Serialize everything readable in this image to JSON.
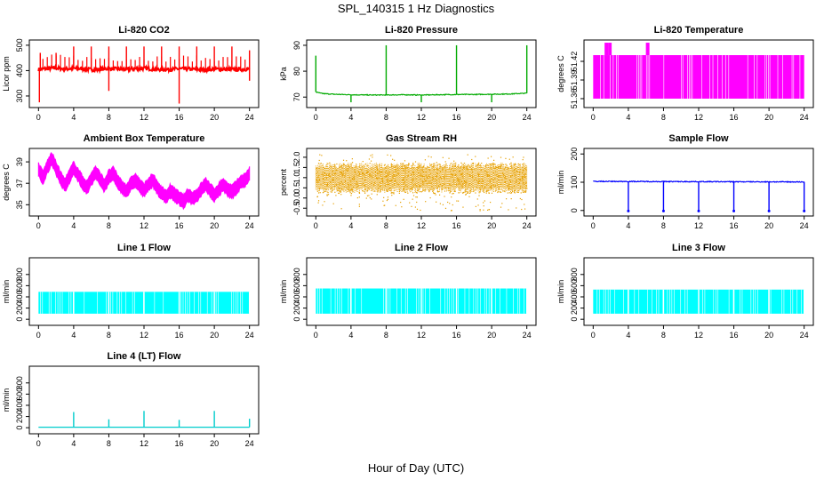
{
  "figure": {
    "title": "SPL_140315  1 Hz Diagnostics",
    "xlabel": "Hour of Day (UTC)"
  },
  "chart_data": [
    {
      "id": "co2",
      "type": "line",
      "title": "Li-820 CO2",
      "ylabel": "Licor ppm",
      "color": "#ff0000",
      "xlim": [
        0,
        24
      ],
      "ylim": [
        265,
        510
      ],
      "xticks": [
        0,
        4,
        8,
        12,
        16,
        20,
        24
      ],
      "yticks": [
        300,
        400,
        500
      ],
      "series": [
        {
          "x": [
            0,
            1,
            2,
            3,
            4,
            5,
            6,
            7,
            8,
            9,
            10,
            11,
            12,
            13,
            14,
            15,
            16,
            17,
            18,
            19,
            20,
            21,
            22,
            23,
            24
          ],
          "y": [
            405,
            408,
            410,
            406,
            409,
            407,
            404,
            405,
            408,
            406,
            405,
            407,
            409,
            406,
            404,
            405,
            407,
            406,
            405,
            404,
            406,
            405,
            404,
            405,
            406
          ]
        }
      ],
      "spikes_up": [
        [
          0.2,
          470
        ],
        [
          2.0,
          470
        ],
        [
          4.0,
          495
        ],
        [
          6.0,
          495
        ],
        [
          8.0,
          495
        ],
        [
          10.0,
          495
        ],
        [
          12.0,
          495
        ],
        [
          14.0,
          495
        ],
        [
          16.0,
          495
        ],
        [
          18.0,
          495
        ],
        [
          20.0,
          495
        ],
        [
          22.0,
          495
        ],
        [
          24.0,
          480
        ]
      ],
      "spikes_down": [
        [
          0.1,
          275
        ],
        [
          8.0,
          320
        ],
        [
          16.0,
          270
        ],
        [
          24.0,
          360
        ]
      ]
    },
    {
      "id": "pressure",
      "type": "line",
      "title": "Li-820 Pressure",
      "ylabel": "kPa",
      "color": "#00aa00",
      "xlim": [
        0,
        24
      ],
      "ylim": [
        67,
        91
      ],
      "xticks": [
        0,
        4,
        8,
        12,
        16,
        20,
        24
      ],
      "yticks": [
        70,
        80,
        90
      ],
      "series": [
        {
          "x": [
            0,
            0.5,
            1,
            2,
            4,
            6,
            8,
            10,
            12,
            14,
            16,
            18,
            20,
            22,
            24
          ],
          "y": [
            72,
            71.5,
            71.3,
            71.1,
            70.9,
            70.8,
            70.8,
            70.9,
            70.8,
            70.9,
            71,
            71,
            71.1,
            71.2,
            71.5
          ]
        }
      ],
      "spikes_up": [
        [
          0.0,
          86
        ],
        [
          8.0,
          90
        ],
        [
          16.0,
          90
        ],
        [
          24.0,
          90
        ]
      ],
      "spikes_down": [
        [
          4.0,
          68
        ],
        [
          12.0,
          68
        ],
        [
          20.0,
          68
        ]
      ]
    },
    {
      "id": "licor_temp",
      "type": "line",
      "title": "Li-820 Temperature",
      "ylabel": "degrees C",
      "color": "#ff00ff",
      "xlim": [
        0,
        24
      ],
      "ylim": [
        51.35,
        51.45
      ],
      "xticks": [
        0,
        4,
        8,
        12,
        16,
        20,
        24
      ],
      "yticks": [
        51.36,
        51.39,
        51.42
      ],
      "band": [
        51.36,
        51.43
      ],
      "spikes_up": [
        [
          1.5,
          51.45
        ],
        [
          1.9,
          51.45
        ],
        [
          6.2,
          51.45
        ]
      ]
    },
    {
      "id": "box_temp",
      "type": "line",
      "title": "Ambient Box Temperature",
      "ylabel": "degrees C",
      "color": "#ff00ff",
      "xlim": [
        0,
        24
      ],
      "ylim": [
        34.2,
        40
      ],
      "xticks": [
        0,
        4,
        8,
        12,
        16,
        20,
        24
      ],
      "yticks": [
        35,
        37,
        39
      ],
      "series": [
        {
          "x": [
            0,
            0.5,
            1,
            1.5,
            2,
            2.5,
            3,
            3.5,
            4,
            4.5,
            5,
            5.5,
            6,
            6.5,
            7,
            7.5,
            8,
            8.5,
            9,
            9.5,
            10,
            10.5,
            11,
            11.5,
            12,
            12.5,
            13,
            13.5,
            14,
            14.5,
            15,
            15.5,
            16,
            16.5,
            17,
            17.5,
            18,
            18.5,
            19,
            19.5,
            20,
            20.5,
            21,
            21.5,
            22,
            22.5,
            23,
            23.5,
            24
          ],
          "y": [
            38.3,
            37.5,
            38.5,
            39.3,
            38.4,
            37.5,
            36.8,
            37.6,
            38.4,
            37.8,
            37.1,
            36.6,
            37.4,
            38.0,
            37.4,
            36.8,
            37.6,
            37.9,
            37.2,
            36.6,
            36.3,
            36.9,
            37.3,
            36.8,
            36.3,
            36.9,
            37.3,
            36.6,
            36.1,
            35.7,
            36.3,
            35.9,
            35.6,
            35.3,
            35.9,
            35.6,
            35.8,
            36.4,
            36.9,
            36.4,
            35.9,
            36.4,
            36.9,
            36.4,
            36.2,
            36.6,
            37.1,
            37.3,
            37.9
          ]
        }
      ],
      "band_halfwidth": 0.65
    },
    {
      "id": "rh",
      "type": "scatter",
      "title": "Gas Stream RH",
      "ylabel": "percent",
      "color": "#e6a000",
      "xlim": [
        0,
        24
      ],
      "ylim": [
        -0.75,
        2.3
      ],
      "xticks": [
        0,
        4,
        8,
        12,
        16,
        20,
        24
      ],
      "yticks": [
        -0.5,
        0.0,
        0.5,
        1.0,
        1.5,
        2.0
      ],
      "band": [
        0.25,
        1.75
      ],
      "range": [
        -0.6,
        2.15
      ]
    },
    {
      "id": "sample_flow",
      "type": "line",
      "title": "Sample Flow",
      "ylabel": "ml/min",
      "color": "#0000ff",
      "xlim": [
        0,
        24
      ],
      "ylim": [
        -10,
        210
      ],
      "xticks": [
        0,
        4,
        8,
        12,
        16,
        20,
        24
      ],
      "yticks": [
        0,
        100,
        200
      ],
      "series": [
        {
          "x": [
            0,
            24
          ],
          "y": [
            103,
            101
          ]
        }
      ],
      "spikes_down": [
        [
          4.0,
          -2
        ],
        [
          8.0,
          -2
        ],
        [
          12.0,
          -2
        ],
        [
          16.0,
          -2
        ],
        [
          20.0,
          -2
        ],
        [
          24.0,
          -2
        ]
      ]
    },
    {
      "id": "line1",
      "type": "area",
      "title": "Line 1 Flow",
      "ylabel": "ml/min",
      "color": "#00ffff",
      "xlim": [
        0,
        24
      ],
      "ylim": [
        -60,
        1050
      ],
      "xticks": [
        0,
        4,
        8,
        12,
        16,
        20,
        24
      ],
      "yticks": [
        0,
        200,
        400,
        600,
        800
      ],
      "band": [
        100,
        490
      ],
      "gaps": [
        4.0,
        8.0,
        12.0,
        16.0,
        20.0,
        24.0
      ]
    },
    {
      "id": "line2",
      "type": "area",
      "title": "Line 2 Flow",
      "ylabel": "ml/min",
      "color": "#00ffff",
      "xlim": [
        0,
        24
      ],
      "ylim": [
        -60,
        1050
      ],
      "xticks": [
        0,
        4,
        8,
        12,
        16,
        20,
        24
      ],
      "yticks": [
        0,
        200,
        400,
        600,
        800
      ],
      "band": [
        100,
        550
      ],
      "gaps": [
        4.0,
        8.0,
        12.0,
        16.0,
        20.0,
        24.0
      ]
    },
    {
      "id": "line3",
      "type": "area",
      "title": "Line 3 Flow",
      "ylabel": "ml/min",
      "color": "#00ffff",
      "xlim": [
        0,
        24
      ],
      "ylim": [
        -60,
        1050
      ],
      "xticks": [
        0,
        4,
        8,
        12,
        16,
        20,
        24
      ],
      "yticks": [
        0,
        200,
        400,
        600,
        800
      ],
      "band": [
        100,
        530
      ],
      "gaps": [
        4.0,
        8.0,
        12.0,
        16.0,
        20.0,
        24.0
      ]
    },
    {
      "id": "line4",
      "type": "line",
      "title": "Line 4 (LT) Flow",
      "ylabel": "ml/min",
      "color": "#00cccc",
      "xlim": [
        0,
        24
      ],
      "ylim": [
        -60,
        1050
      ],
      "xticks": [
        0,
        4,
        8,
        12,
        16,
        20,
        24
      ],
      "yticks": [
        0,
        200,
        400,
        600,
        800
      ],
      "series": [
        {
          "x": [
            0,
            24
          ],
          "y": [
            10,
            10
          ]
        }
      ],
      "spikes_up": [
        [
          4.0,
          280
        ],
        [
          8.0,
          150
        ],
        [
          12.0,
          300
        ],
        [
          16.0,
          140
        ],
        [
          20.0,
          300
        ],
        [
          24.0,
          160
        ]
      ]
    }
  ]
}
